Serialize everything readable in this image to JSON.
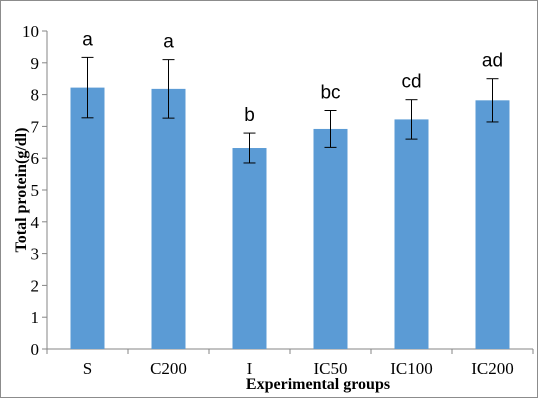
{
  "chart_data": {
    "type": "bar",
    "categories": [
      "S",
      "C200",
      "I",
      "IC50",
      "IC100",
      "IC200"
    ],
    "values": [
      8.22,
      8.18,
      6.32,
      6.92,
      7.22,
      7.82
    ],
    "errors": [
      0.95,
      0.92,
      0.47,
      0.58,
      0.62,
      0.68
    ],
    "significance_labels": [
      "a",
      "a",
      "b",
      "bc",
      "cd",
      "ad"
    ],
    "xlabel": "Experimental groups",
    "ylabel": "Total protein(g/dl)",
    "ylim": [
      0,
      10
    ],
    "yticks": [
      "0",
      "1",
      "2",
      "3",
      "4",
      "5",
      "6",
      "7",
      "8",
      "9",
      "10"
    ],
    "bar_color": "#5b9bd5",
    "grid": false
  }
}
